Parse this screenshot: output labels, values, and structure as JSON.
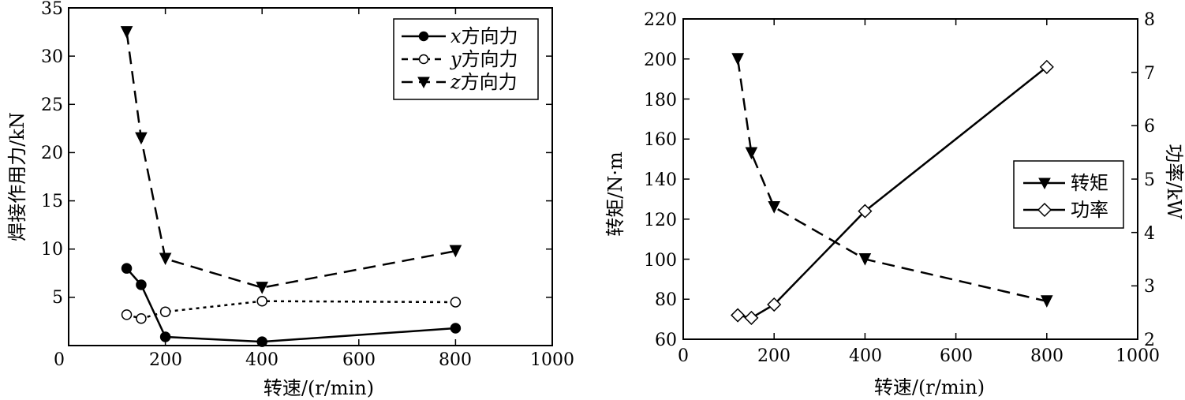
{
  "chart_data": [
    {
      "type": "line",
      "xlabel": "转速/(r/min)",
      "ylabel": "焊接作用力/kN",
      "xlim": [
        0,
        1000
      ],
      "ylim": [
        0,
        35
      ],
      "x_ticks": [
        0,
        200,
        400,
        600,
        800,
        1000
      ],
      "y_ticks": [
        5,
        10,
        15,
        20,
        25,
        30,
        35
      ],
      "x": [
        120,
        150,
        200,
        400,
        800
      ],
      "legend_position": "top-right",
      "grid": false,
      "series": [
        {
          "name_var": "x",
          "name_suffix": "方向力",
          "values": [
            8.0,
            6.3,
            0.9,
            0.4,
            1.8
          ],
          "line_style": "solid",
          "marker": "filled-circle",
          "color": "#000000"
        },
        {
          "name_var": "y",
          "name_suffix": "方向力",
          "values": [
            3.2,
            2.8,
            3.5,
            4.6,
            4.5
          ],
          "line_style": "dotted",
          "marker": "open-circle",
          "color": "#000000"
        },
        {
          "name_var": "z",
          "name_suffix": "方向力",
          "values": [
            32.5,
            21.5,
            9.0,
            6.0,
            9.8
          ],
          "line_style": "dashed",
          "marker": "filled-triangle-down",
          "color": "#000000"
        }
      ]
    },
    {
      "type": "line",
      "xlabel": "转速/(r/min)",
      "ylabel": "转矩/N·m",
      "ylabel_right": "功率/kW",
      "xlim": [
        0,
        1000
      ],
      "ylim": [
        60,
        220
      ],
      "ylim_right": [
        2,
        8
      ],
      "x_ticks": [
        0,
        200,
        400,
        600,
        800,
        1000
      ],
      "y_ticks": [
        60,
        80,
        100,
        120,
        140,
        160,
        180,
        200,
        220
      ],
      "y_ticks_right": [
        2,
        3,
        4,
        5,
        6,
        7,
        8
      ],
      "legend_position": "center-right",
      "grid": false,
      "series": [
        {
          "name": "转矩",
          "axis": "left",
          "x": [
            120,
            150,
            200,
            400,
            800
          ],
          "values": [
            200,
            153,
            126,
            100,
            79
          ],
          "line_style": "dashed",
          "marker": "filled-triangle-down",
          "color": "#000000"
        },
        {
          "name": "功率",
          "axis": "right",
          "x": [
            120,
            150,
            200,
            400,
            800
          ],
          "values": [
            2.45,
            2.4,
            2.65,
            4.4,
            7.1
          ],
          "line_style": "solid",
          "marker": "open-diamond",
          "color": "#000000"
        }
      ]
    }
  ]
}
